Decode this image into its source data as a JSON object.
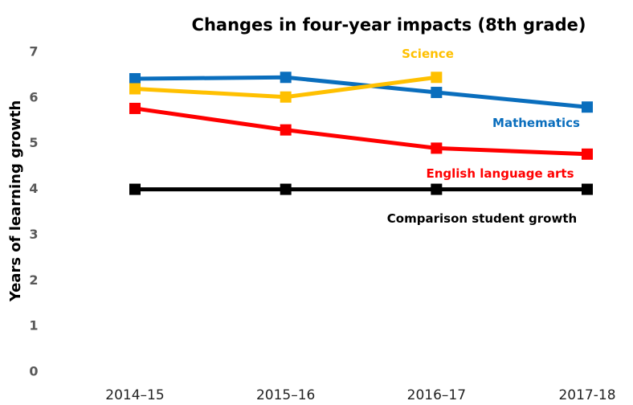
{
  "chart_data": {
    "type": "line",
    "title": "Changes in four-year impacts (8th grade)",
    "y_label": "Years of learning growth",
    "categories": [
      "2014–15",
      "2015–16",
      "2016–17",
      "2017-18"
    ],
    "series": [
      {
        "name": "Comparison student growth",
        "color": "#000000",
        "values": [
          4,
          4,
          4,
          4
        ]
      },
      {
        "name": "English language arts",
        "color": "#ff0000",
        "values": [
          5.77,
          5.3,
          4.9,
          4.77
        ]
      },
      {
        "name": "Mathematics",
        "color": "#0a6ebd",
        "values": [
          6.42,
          6.45,
          6.12,
          5.8
        ]
      },
      {
        "name": "Science",
        "color": "#ffc000",
        "values": [
          6.2,
          6.02,
          6.45,
          null
        ]
      }
    ],
    "ylim": [
      0,
      7
    ],
    "yticks": [
      0,
      1,
      2,
      3,
      4,
      5,
      6,
      7
    ],
    "grid": false
  }
}
